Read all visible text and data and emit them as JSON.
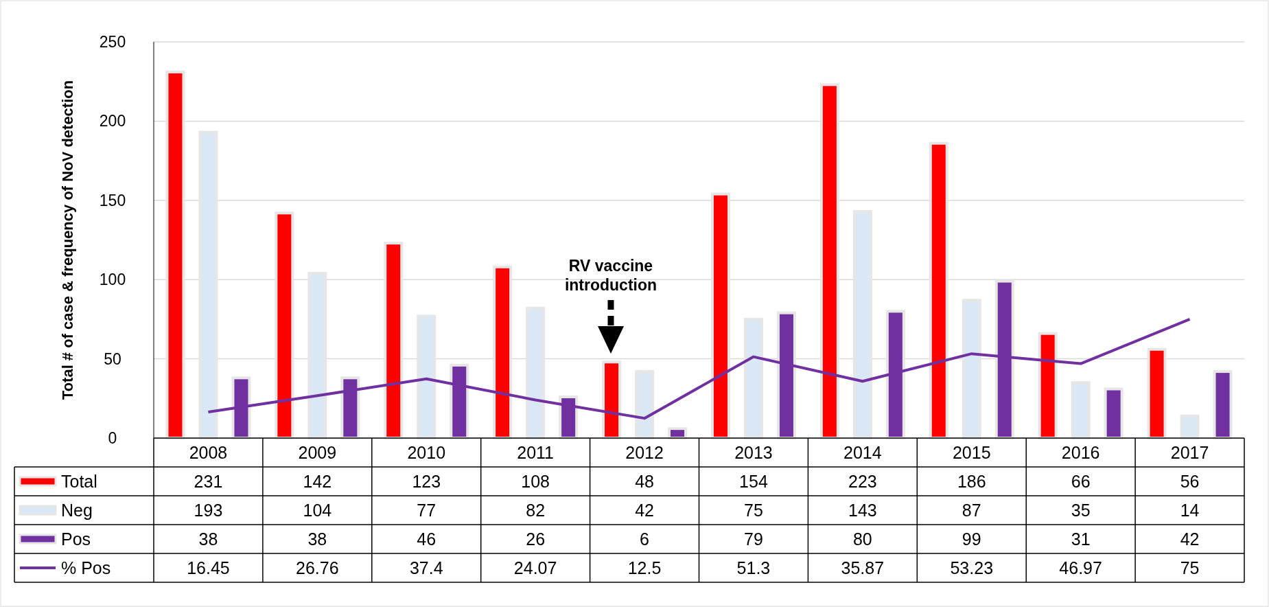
{
  "chart_data": {
    "type": "bar",
    "ylabel": "Total # of case & frequency of NoV detection",
    "categories": [
      "2008",
      "2009",
      "2010",
      "2011",
      "2012",
      "2013",
      "2014",
      "2015",
      "2016",
      "2017"
    ],
    "series": [
      {
        "name": "Total",
        "color": "#ff0000",
        "values": [
          231,
          142,
          123,
          108,
          48,
          154,
          223,
          186,
          66,
          56
        ]
      },
      {
        "name": "Neg",
        "color": "#dae8f5",
        "values": [
          193,
          104,
          77,
          82,
          42,
          75,
          143,
          87,
          35,
          14
        ]
      },
      {
        "name": "Pos",
        "color": "#7030a0",
        "values": [
          38,
          38,
          46,
          26,
          6,
          79,
          80,
          99,
          31,
          42
        ]
      },
      {
        "name": "% Pos",
        "type": "line",
        "color": "#7030a0",
        "values": [
          16.45,
          26.76,
          37.4,
          24.07,
          12.5,
          51.3,
          35.87,
          53.23,
          46.97,
          75
        ]
      }
    ],
    "ylim": [
      0,
      250
    ],
    "yticks": [
      0,
      50,
      100,
      150,
      200,
      250
    ],
    "grid": "y",
    "legend": "bottom",
    "data_labels": true,
    "marker": "none",
    "annotations": [
      "RV vaccine introduction"
    ]
  }
}
